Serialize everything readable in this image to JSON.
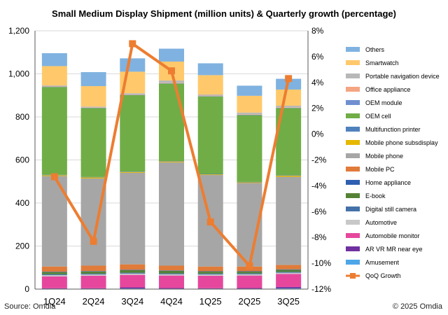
{
  "chart_data": {
    "type": "bar",
    "title": "Small Medium Display Shipment (million units) & Quarterly growth (percentage)",
    "categories": [
      "1Q24",
      "2Q24",
      "3Q24",
      "4Q24",
      "1Q25",
      "2Q25",
      "3Q25"
    ],
    "y_left": {
      "ylim": [
        0,
        1200
      ],
      "ticks": [
        "0",
        "200",
        "400",
        "600",
        "800",
        "1,000",
        "1,200"
      ]
    },
    "y_right": {
      "ylim": [
        -12,
        8
      ],
      "ticks": [
        "-12%",
        "-10%",
        "-8%",
        "-6%",
        "-4%",
        "-2%",
        "0%",
        "2%",
        "4%",
        "6%",
        "8%"
      ]
    },
    "series": [
      {
        "name": "Amusement",
        "color": "#4da6e8",
        "values": [
          2,
          2,
          3,
          2,
          2,
          2,
          4
        ]
      },
      {
        "name": "AR VR MR near eye",
        "color": "#7030a0",
        "values": [
          2,
          2,
          5,
          3,
          2,
          3,
          6
        ]
      },
      {
        "name": "Automobile monitor",
        "color": "#e6479d",
        "values": [
          55,
          58,
          58,
          58,
          58,
          58,
          60
        ]
      },
      {
        "name": "Automotive",
        "color": "#c8c8c8",
        "values": [
          6,
          6,
          6,
          6,
          6,
          6,
          6
        ]
      },
      {
        "name": "Digital still camera",
        "color": "#4472a8",
        "values": [
          4,
          4,
          4,
          4,
          4,
          4,
          4
        ]
      },
      {
        "name": "E-book",
        "color": "#548235",
        "values": [
          10,
          10,
          12,
          12,
          9,
          8,
          10
        ]
      },
      {
        "name": "Home appliance",
        "color": "#2e5fb0",
        "values": [
          2,
          2,
          2,
          2,
          2,
          2,
          2
        ]
      },
      {
        "name": "Mobile PC",
        "color": "#e07b39",
        "values": [
          24,
          25,
          25,
          22,
          22,
          22,
          20
        ]
      },
      {
        "name": "Mobile phone",
        "color": "#a6a6a6",
        "values": [
          420,
          405,
          425,
          480,
          425,
          388,
          410
        ]
      },
      {
        "name": "Mobile phone subsdisplay",
        "color": "#e6b800",
        "values": [
          4,
          5,
          4,
          4,
          3,
          3,
          5
        ]
      },
      {
        "name": "Multifunction printer",
        "color": "#4f81bd",
        "values": [
          2,
          2,
          2,
          2,
          2,
          2,
          2
        ]
      },
      {
        "name": "OEM cell",
        "color": "#70ad47",
        "values": [
          408,
          320,
          355,
          360,
          360,
          310,
          312
        ]
      },
      {
        "name": "OEM module",
        "color": "#6f8fd0",
        "values": [
          2,
          2,
          2,
          2,
          2,
          2,
          2
        ]
      },
      {
        "name": "Office appliance",
        "color": "#f4a582",
        "values": [
          2,
          2,
          2,
          2,
          2,
          2,
          2
        ]
      },
      {
        "name": "Portable navigation device",
        "color": "#b8b8b8",
        "values": [
          3,
          3,
          5,
          10,
          5,
          8,
          7
        ]
      },
      {
        "name": "Smartwatch",
        "color": "#ffc96b",
        "values": [
          90,
          95,
          100,
          88,
          90,
          78,
          75
        ]
      },
      {
        "name": "Others",
        "color": "#7fb2e0",
        "values": [
          60,
          65,
          62,
          60,
          55,
          47,
          50
        ]
      }
    ],
    "line": {
      "name": "QoQ Growth",
      "color": "#ed7d31",
      "axis": "right",
      "values": [
        -3.3,
        -8.3,
        7.0,
        4.9,
        -6.8,
        -10.2,
        4.3
      ]
    },
    "legend_position": "right",
    "grid": true
  },
  "footer": {
    "source": "Source: Omdia",
    "copyright": "© 2025 Omdia"
  }
}
